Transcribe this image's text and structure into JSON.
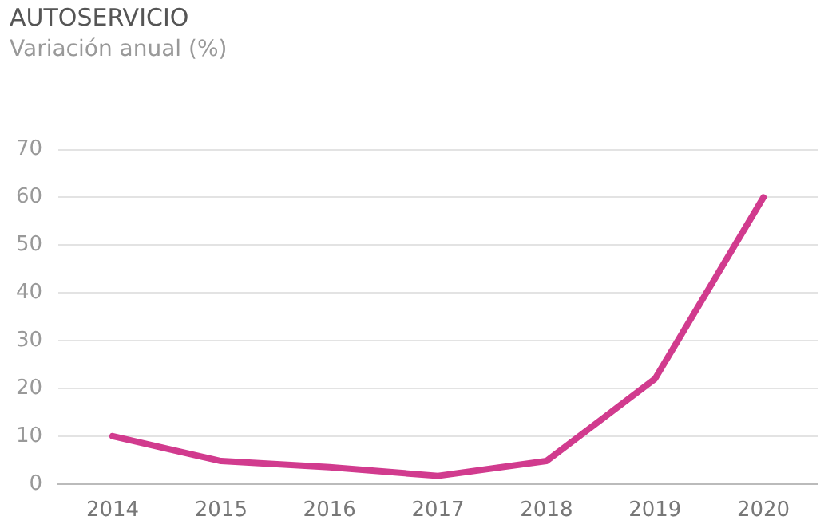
{
  "chart_data": {
    "type": "line",
    "title": "AUTOSERVICIO",
    "subtitle": "Variación anual (%)",
    "categories": [
      "2014",
      "2015",
      "2016",
      "2017",
      "2018",
      "2019",
      "2020"
    ],
    "series": [
      {
        "color": "#d13b8e",
        "values": [
          10,
          4.8,
          3.5,
          1.7,
          4.8,
          22,
          60
        ]
      }
    ],
    "ylim": [
      0,
      70
    ],
    "yticks": [
      0,
      10,
      20,
      30,
      40,
      50,
      60,
      70
    ],
    "grid": "y",
    "legend": false,
    "marker": "none",
    "line_style": "solid"
  }
}
